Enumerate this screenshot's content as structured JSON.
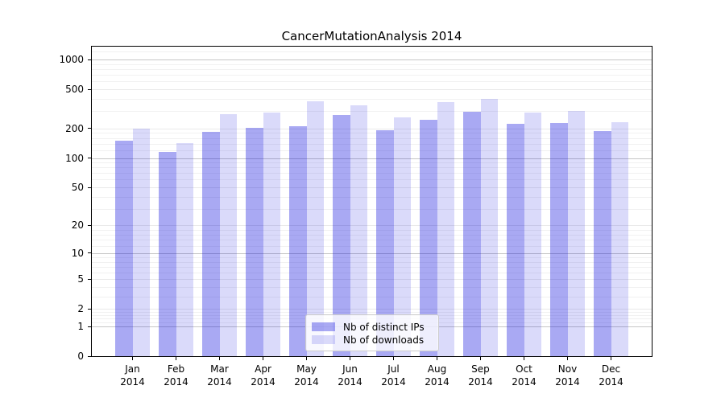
{
  "chart_data": {
    "type": "bar",
    "title": "CancerMutationAnalysis 2014",
    "categories": [
      "Jan 2014",
      "Feb 2014",
      "Mar 2014",
      "Apr 2014",
      "May 2014",
      "Jun 2014",
      "Jul 2014",
      "Aug 2014",
      "Sep 2014",
      "Oct 2014",
      "Nov 2014",
      "Dec 2014"
    ],
    "series": [
      {
        "name": "Nb of distinct IPs",
        "color": "rgba(10,10,220,0.35)",
        "values": [
          150,
          115,
          185,
          203,
          212,
          272,
          191,
          244,
          293,
          224,
          228,
          189
        ]
      },
      {
        "name": "Nb of downloads",
        "color": "rgba(10,10,220,0.15)",
        "values": [
          198,
          141,
          278,
          292,
          377,
          345,
          259,
          370,
          396,
          290,
          301,
          230
        ]
      }
    ],
    "xlabel": "",
    "ylabel": "",
    "y_scale": "log1p",
    "y_max": 1350,
    "y_ticks": [
      0,
      1,
      2,
      5,
      10,
      20,
      50,
      100,
      200,
      500,
      1000
    ],
    "y_decade_ticks": [
      1,
      10,
      100,
      1000
    ],
    "y_minor_subs": [
      1.2,
      1.4,
      1.6,
      1.8,
      3,
      4,
      6,
      7,
      8,
      9
    ],
    "grid": "horizontal",
    "legend_position": "lower center inside",
    "colors": {
      "grid_decade": "#c6c6c6",
      "grid_major": "#e9e9e9",
      "grid_minor": "#f1f1f1",
      "spine": "#000000",
      "bar_base": "#0a0adc",
      "background": "#ffffff"
    }
  }
}
